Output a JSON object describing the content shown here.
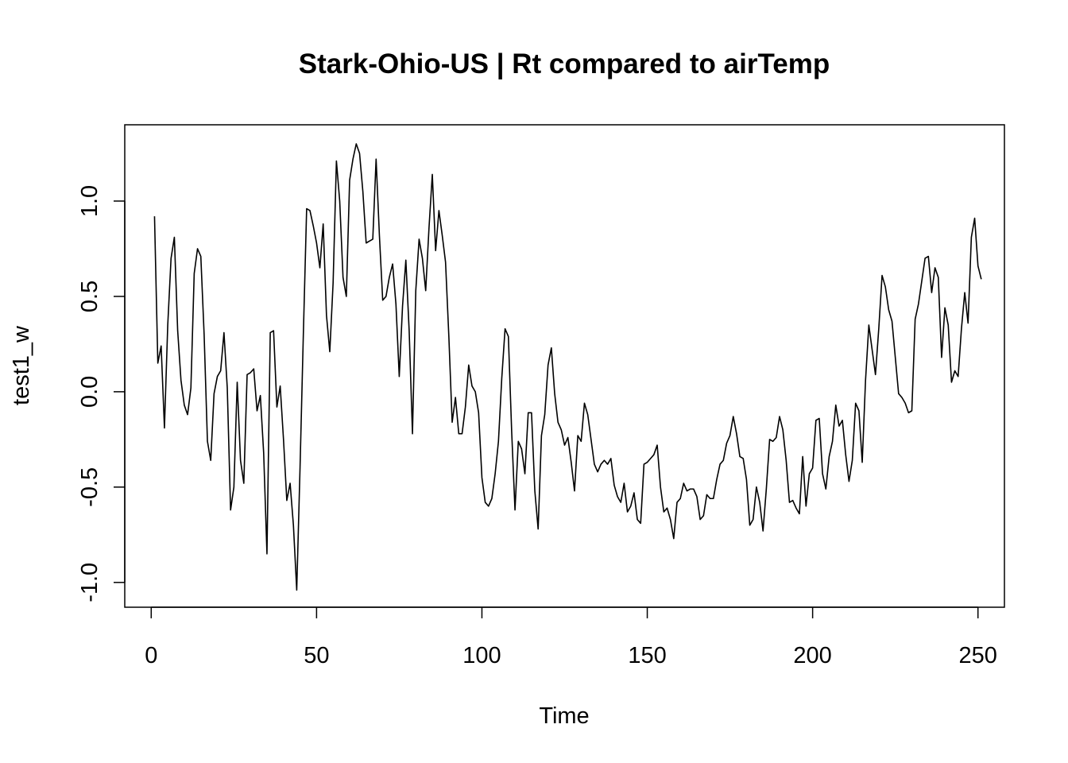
{
  "chart_data": {
    "type": "line",
    "title": "Stark-Ohio-US | Rt compared to airTemp",
    "xlabel": "Time",
    "ylabel": "test1_w",
    "xlim": [
      -8,
      258
    ],
    "ylim": [
      -1.13,
      1.4
    ],
    "x_ticks": [
      0,
      50,
      100,
      150,
      200,
      250
    ],
    "y_ticks": [
      -1.0,
      -0.5,
      0.0,
      0.5,
      1.0
    ],
    "x_tick_labels": [
      "0",
      "50",
      "100",
      "150",
      "200",
      "250"
    ],
    "y_tick_labels": [
      "-1.0",
      "-0.5",
      "0.0",
      "0.5",
      "1.0"
    ],
    "grid": false,
    "legend": "none",
    "line_color": "#000000",
    "series": [
      {
        "x_start": 1,
        "values": [
          0.92,
          0.15,
          0.24,
          -0.19,
          0.35,
          0.7,
          0.81,
          0.32,
          0.06,
          -0.07,
          -0.12,
          0.02,
          0.62,
          0.75,
          0.71,
          0.3,
          -0.26,
          -0.36,
          -0.01,
          0.08,
          0.11,
          0.31,
          0.02,
          -0.62,
          -0.5,
          0.05,
          -0.36,
          -0.48,
          0.09,
          0.1,
          0.12,
          -0.1,
          -0.02,
          -0.32,
          -0.85,
          0.31,
          0.32,
          -0.08,
          0.03,
          -0.25,
          -0.57,
          -0.48,
          -0.7,
          -1.04,
          -0.4,
          0.3,
          0.96,
          0.95,
          0.87,
          0.78,
          0.65,
          0.88,
          0.4,
          0.21,
          0.57,
          1.21,
          1.0,
          0.6,
          0.5,
          1.11,
          1.22,
          1.3,
          1.25,
          1.05,
          0.78,
          0.79,
          0.8,
          1.22,
          0.82,
          0.48,
          0.5,
          0.6,
          0.67,
          0.46,
          0.08,
          0.45,
          0.69,
          0.32,
          -0.22,
          0.53,
          0.8,
          0.7,
          0.53,
          0.86,
          1.14,
          0.74,
          0.95,
          0.82,
          0.68,
          0.29,
          -0.16,
          -0.03,
          -0.22,
          -0.22,
          -0.08,
          0.14,
          0.03,
          0.0,
          -0.11,
          -0.45,
          -0.58,
          -0.6,
          -0.56,
          -0.43,
          -0.26,
          0.07,
          0.33,
          0.29,
          -0.21,
          -0.62,
          -0.26,
          -0.3,
          -0.43,
          -0.11,
          -0.11,
          -0.52,
          -0.72,
          -0.23,
          -0.12,
          0.14,
          0.23,
          -0.01,
          -0.16,
          -0.2,
          -0.28,
          -0.24,
          -0.37,
          -0.52,
          -0.23,
          -0.26,
          -0.06,
          -0.12,
          -0.25,
          -0.38,
          -0.42,
          -0.38,
          -0.36,
          -0.38,
          -0.35,
          -0.49,
          -0.55,
          -0.58,
          -0.48,
          -0.63,
          -0.6,
          -0.53,
          -0.67,
          -0.69,
          -0.38,
          -0.37,
          -0.35,
          -0.33,
          -0.28,
          -0.5,
          -0.63,
          -0.61,
          -0.67,
          -0.77,
          -0.58,
          -0.56,
          -0.48,
          -0.52,
          -0.51,
          -0.51,
          -0.55,
          -0.67,
          -0.65,
          -0.54,
          -0.56,
          -0.56,
          -0.46,
          -0.38,
          -0.36,
          -0.27,
          -0.23,
          -0.13,
          -0.22,
          -0.34,
          -0.35,
          -0.46,
          -0.7,
          -0.67,
          -0.5,
          -0.58,
          -0.73,
          -0.51,
          -0.25,
          -0.26,
          -0.24,
          -0.13,
          -0.2,
          -0.36,
          -0.58,
          -0.57,
          -0.61,
          -0.64,
          -0.34,
          -0.6,
          -0.43,
          -0.4,
          -0.15,
          -0.14,
          -0.43,
          -0.51,
          -0.34,
          -0.26,
          -0.07,
          -0.18,
          -0.15,
          -0.33,
          -0.47,
          -0.36,
          -0.06,
          -0.1,
          -0.37,
          0.06,
          0.35,
          0.22,
          0.09,
          0.33,
          0.61,
          0.55,
          0.43,
          0.37,
          0.18,
          -0.01,
          -0.03,
          -0.06,
          -0.11,
          -0.1,
          0.38,
          0.46,
          0.58,
          0.7,
          0.71,
          0.52,
          0.65,
          0.6,
          0.18,
          0.44,
          0.35,
          0.05,
          0.11,
          0.08,
          0.33,
          0.52,
          0.36,
          0.81,
          0.91,
          0.66,
          0.59
        ]
      }
    ]
  }
}
